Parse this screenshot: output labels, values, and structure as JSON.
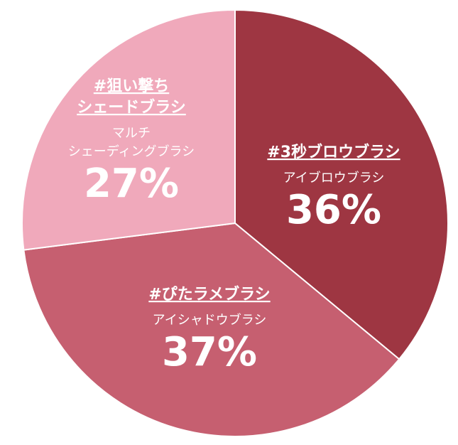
{
  "chart_data": {
    "type": "pie",
    "categories": [
      [
        "#3秒ブロウブラシ"
      ],
      [
        "#ぴたラメブラシ"
      ],
      [
        "#狙い撃ち",
        "シェードブラシ"
      ]
    ],
    "subcategories": [
      [
        "アイブロウブラシ"
      ],
      [
        "アイシャドウブラシ"
      ],
      [
        "マルチ",
        "シェーディングブラシ"
      ]
    ],
    "values": [
      36,
      37,
      27
    ],
    "value_labels": [
      "36%",
      "37%",
      "27%"
    ],
    "colors": [
      "#9e3642",
      "#c65f70",
      "#f0a9bb"
    ]
  }
}
